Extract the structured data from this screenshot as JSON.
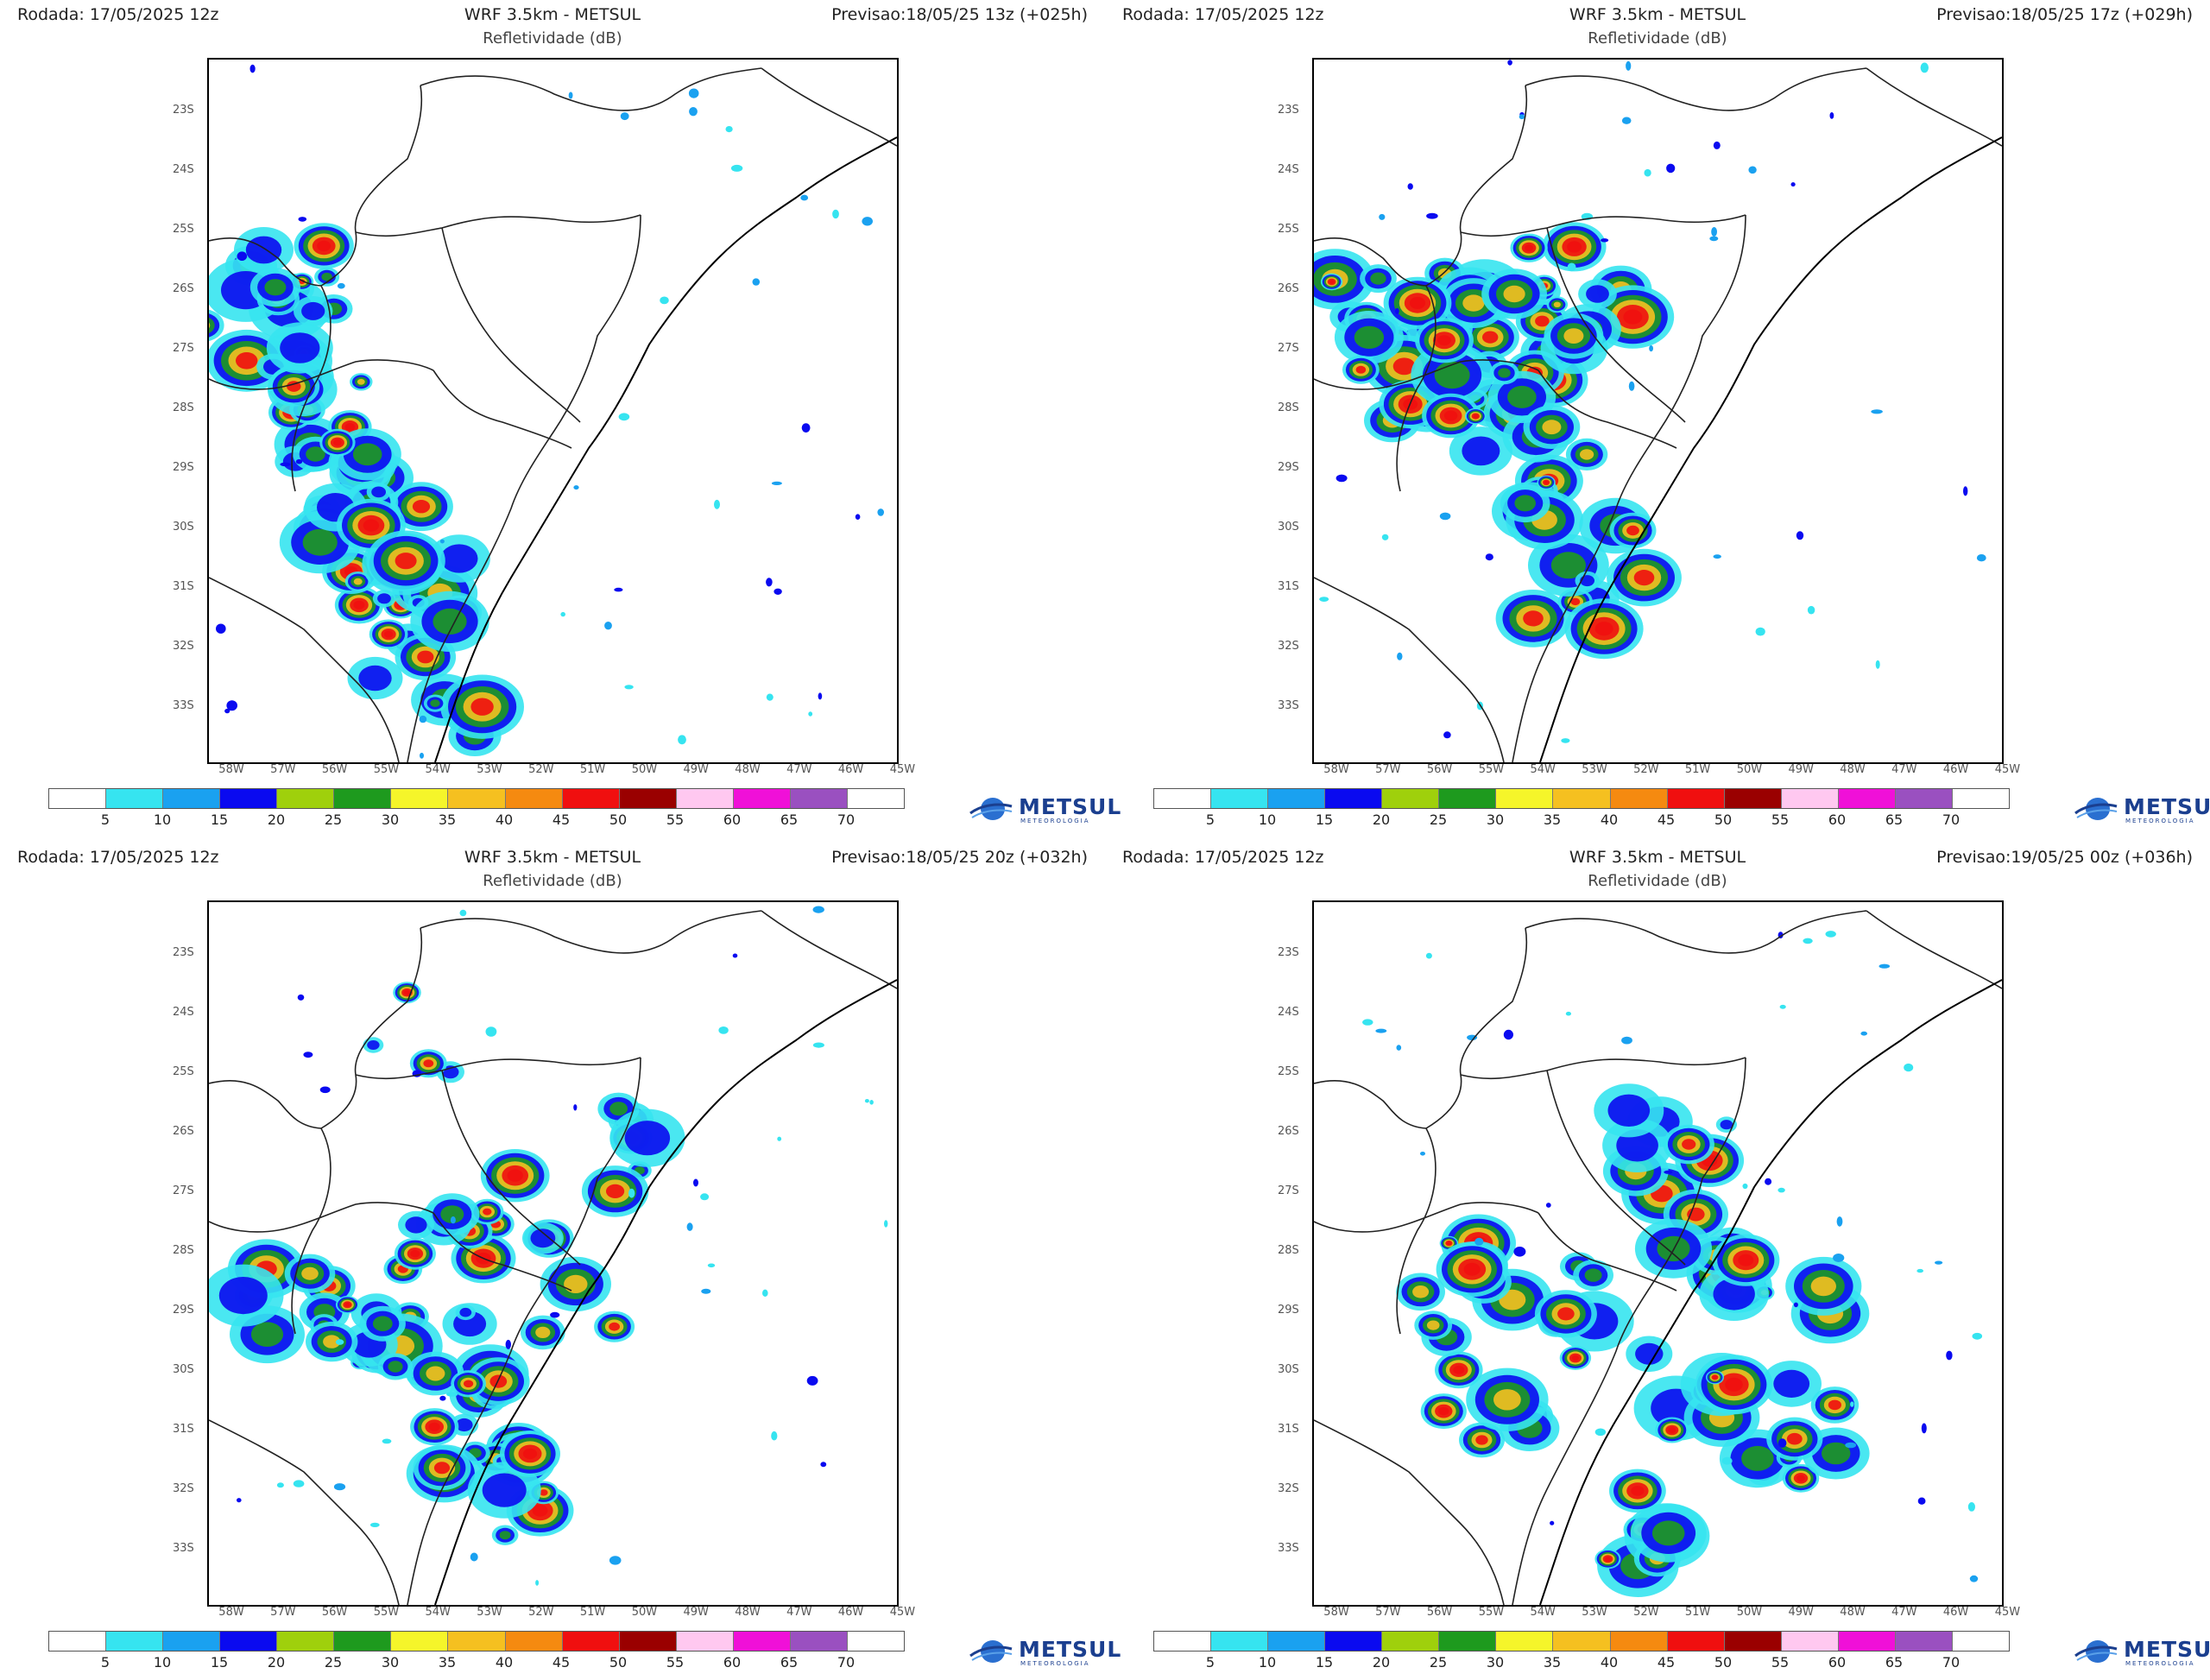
{
  "panels": [
    {
      "rodada": "Rodada: 17/05/2025 12z",
      "model": "WRF 3.5km - METSUL",
      "subtitle": "Refletividade (dB)",
      "previsao": "Previsao:18/05/25 13z (+025h)"
    },
    {
      "rodada": "Rodada: 17/05/2025 12z",
      "model": "WRF 3.5km - METSUL",
      "subtitle": "Refletividade (dB)",
      "previsao": "Previsao:18/05/25 17z (+029h)"
    },
    {
      "rodada": "Rodada: 17/05/2025 12z",
      "model": "WRF 3.5km - METSUL",
      "subtitle": "Refletividade (dB)",
      "previsao": "Previsao:18/05/25 20z (+032h)"
    },
    {
      "rodada": "Rodada: 17/05/2025 12z",
      "model": "WRF 3.5km - METSUL",
      "subtitle": "Refletividade (dB)",
      "previsao": "Previsao:19/05/25 00z (+036h)"
    }
  ],
  "lat_labels": [
    "23S",
    "24S",
    "25S",
    "26S",
    "27S",
    "28S",
    "29S",
    "30S",
    "31S",
    "32S",
    "33S"
  ],
  "lon_labels": [
    "58W",
    "57W",
    "56W",
    "55W",
    "54W",
    "53W",
    "52W",
    "51W",
    "50W",
    "49W",
    "48W",
    "47W",
    "46W",
    "45W"
  ],
  "colorbar": {
    "labels": [
      "5",
      "10",
      "15",
      "20",
      "25",
      "30",
      "35",
      "40",
      "45",
      "50",
      "55",
      "60",
      "65",
      "70"
    ],
    "colors": [
      "#ffffff",
      "#36e4f0",
      "#1aa1f0",
      "#0a0af0",
      "#9fd00c",
      "#1e9a1e",
      "#f5f52a",
      "#f5c020",
      "#f58a10",
      "#f00f0f",
      "#9a0000",
      "#ffc8f0",
      "#f010d8",
      "#9a50c0",
      "#ffffff"
    ]
  },
  "logo": {
    "text": "METSUL",
    "tagline": "METEOROLOGIA"
  }
}
